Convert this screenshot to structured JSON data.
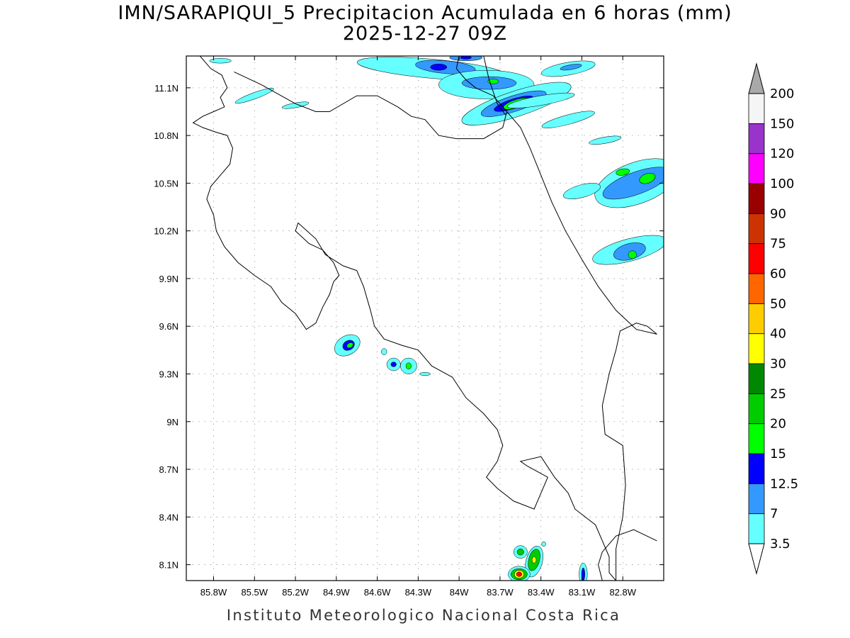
{
  "title": {
    "line1": "IMN/SARAPIQUI_5 Precipitacion Acumulada en 6 horas (mm)",
    "line2": "2025-12-27 09Z"
  },
  "credit": "Instituto Meteorologico Nacional Costa Rica",
  "chart_data": {
    "type": "heatmap",
    "x_ticks": [
      "85.8W",
      "85.5W",
      "85.2W",
      "84.9W",
      "84.6W",
      "84.3W",
      "84W",
      "83.7W",
      "83.4W",
      "83.1W",
      "82.8W"
    ],
    "y_ticks": [
      "11.1N",
      "10.8N",
      "10.5N",
      "10.2N",
      "9.9N",
      "9.6N",
      "9.3N",
      "9N",
      "8.7N",
      "8.4N",
      "8.1N"
    ],
    "lon_range": [
      -86.0,
      -82.5
    ],
    "lat_range": [
      8.0,
      11.3
    ],
    "grid": true,
    "colorbar": {
      "labels": [
        "3.5",
        "7",
        "12.5",
        "15",
        "20",
        "25",
        "30",
        "40",
        "50",
        "60",
        "75",
        "90",
        "100",
        "120",
        "150",
        "200"
      ],
      "colors": [
        "#66ffff",
        "#3399ff",
        "#0000ff",
        "#00ff00",
        "#00cc00",
        "#008800",
        "#ffff00",
        "#ffcc00",
        "#ff6600",
        "#ff0000",
        "#cc3300",
        "#990000",
        "#ff00ff",
        "#9933cc",
        "#f5f5f5"
      ],
      "top_arrow_color": "#a9a9a9",
      "bottom_arrow_color": "#ffffff"
    },
    "cells": [
      {
        "lon": -84.2,
        "lat": 11.22,
        "level": 1,
        "rx": 0.55,
        "ry": 0.06,
        "rot": 5
      },
      {
        "lon": -84.1,
        "lat": 11.23,
        "level": 2,
        "rx": 0.22,
        "ry": 0.04,
        "rot": 5
      },
      {
        "lon": -84.15,
        "lat": 11.23,
        "level": 3,
        "rx": 0.06,
        "ry": 0.02,
        "rot": 0
      },
      {
        "lon": -83.95,
        "lat": 11.29,
        "level": 2,
        "rx": 0.12,
        "ry": 0.02,
        "rot": 0
      },
      {
        "lon": -83.95,
        "lat": 11.29,
        "level": 3,
        "rx": 0.04,
        "ry": 0.01,
        "rot": 0
      },
      {
        "lon": -83.8,
        "lat": 11.12,
        "level": 1,
        "rx": 0.35,
        "ry": 0.09,
        "rot": 0
      },
      {
        "lon": -83.78,
        "lat": 11.13,
        "level": 2,
        "rx": 0.2,
        "ry": 0.04,
        "rot": 0
      },
      {
        "lon": -83.75,
        "lat": 11.14,
        "level": 4,
        "rx": 0.04,
        "ry": 0.015,
        "rot": 0
      },
      {
        "lon": -83.58,
        "lat": 11.0,
        "level": 1,
        "rx": 0.42,
        "ry": 0.08,
        "rot": -18
      },
      {
        "lon": -83.6,
        "lat": 11.0,
        "level": 2,
        "rx": 0.25,
        "ry": 0.05,
        "rot": -18
      },
      {
        "lon": -83.6,
        "lat": 11.0,
        "level": 3,
        "rx": 0.15,
        "ry": 0.03,
        "rot": -18
      },
      {
        "lon": -83.58,
        "lat": 11.0,
        "level": 4,
        "rx": 0.1,
        "ry": 0.025,
        "rot": -18
      },
      {
        "lon": -83.2,
        "lat": 11.22,
        "level": 1,
        "rx": 0.2,
        "ry": 0.04,
        "rot": -10
      },
      {
        "lon": -83.18,
        "lat": 11.23,
        "level": 2,
        "rx": 0.08,
        "ry": 0.015,
        "rot": -10
      },
      {
        "lon": -83.4,
        "lat": 11.02,
        "level": 1,
        "rx": 0.25,
        "ry": 0.03,
        "rot": -10
      },
      {
        "lon": -83.2,
        "lat": 10.9,
        "level": 1,
        "rx": 0.2,
        "ry": 0.03,
        "rot": -15
      },
      {
        "lon": -82.93,
        "lat": 10.77,
        "level": 1,
        "rx": 0.12,
        "ry": 0.02,
        "rot": -10
      },
      {
        "lon": -85.5,
        "lat": 11.05,
        "level": 1,
        "rx": 0.15,
        "ry": 0.02,
        "rot": -20
      },
      {
        "lon": -85.2,
        "lat": 10.99,
        "level": 1,
        "rx": 0.1,
        "ry": 0.015,
        "rot": -10
      },
      {
        "lon": -85.75,
        "lat": 11.27,
        "level": 1,
        "rx": 0.08,
        "ry": 0.015,
        "rot": 0
      },
      {
        "lon": -82.7,
        "lat": 10.5,
        "level": 1,
        "rx": 0.32,
        "ry": 0.13,
        "rot": -20
      },
      {
        "lon": -82.7,
        "lat": 10.5,
        "level": 2,
        "rx": 0.26,
        "ry": 0.07,
        "rot": -20
      },
      {
        "lon": -82.62,
        "lat": 10.53,
        "level": 4,
        "rx": 0.06,
        "ry": 0.03,
        "rot": -20
      },
      {
        "lon": -82.8,
        "lat": 10.57,
        "level": 4,
        "rx": 0.05,
        "ry": 0.02,
        "rot": -10
      },
      {
        "lon": -83.1,
        "lat": 10.45,
        "level": 1,
        "rx": 0.14,
        "ry": 0.04,
        "rot": -15
      },
      {
        "lon": -82.75,
        "lat": 10.08,
        "level": 1,
        "rx": 0.28,
        "ry": 0.07,
        "rot": -15
      },
      {
        "lon": -82.75,
        "lat": 10.07,
        "level": 2,
        "rx": 0.12,
        "ry": 0.05,
        "rot": -15
      },
      {
        "lon": -82.73,
        "lat": 10.05,
        "level": 4,
        "rx": 0.03,
        "ry": 0.025,
        "rot": 0
      },
      {
        "lon": -84.82,
        "lat": 9.48,
        "level": 1,
        "rx": 0.1,
        "ry": 0.06,
        "rot": -30
      },
      {
        "lon": -84.81,
        "lat": 9.48,
        "level": 3,
        "rx": 0.045,
        "ry": 0.03,
        "rot": -30
      },
      {
        "lon": -84.8,
        "lat": 9.48,
        "level": 4,
        "rx": 0.025,
        "ry": 0.015,
        "rot": -30
      },
      {
        "lon": -84.48,
        "lat": 9.36,
        "level": 1,
        "rx": 0.05,
        "ry": 0.04,
        "rot": 0
      },
      {
        "lon": -84.48,
        "lat": 9.36,
        "level": 3,
        "rx": 0.02,
        "ry": 0.015,
        "rot": 0
      },
      {
        "lon": -84.37,
        "lat": 9.35,
        "level": 1,
        "rx": 0.06,
        "ry": 0.05,
        "rot": 0
      },
      {
        "lon": -84.37,
        "lat": 9.35,
        "level": 4,
        "rx": 0.02,
        "ry": 0.02,
        "rot": 0
      },
      {
        "lon": -84.55,
        "lat": 9.44,
        "level": 1,
        "rx": 0.02,
        "ry": 0.02,
        "rot": 0
      },
      {
        "lon": -84.25,
        "lat": 9.3,
        "level": 1,
        "rx": 0.04,
        "ry": 0.01,
        "rot": 0
      },
      {
        "lon": -83.55,
        "lat": 8.18,
        "level": 1,
        "rx": 0.05,
        "ry": 0.04,
        "rot": 0
      },
      {
        "lon": -83.55,
        "lat": 8.18,
        "level": 5,
        "rx": 0.025,
        "ry": 0.02,
        "rot": 0
      },
      {
        "lon": -83.45,
        "lat": 8.12,
        "level": 1,
        "rx": 0.06,
        "ry": 0.1,
        "rot": 15
      },
      {
        "lon": -83.45,
        "lat": 8.13,
        "level": 5,
        "rx": 0.04,
        "ry": 0.07,
        "rot": 15
      },
      {
        "lon": -83.45,
        "lat": 8.13,
        "level": 7,
        "rx": 0.015,
        "ry": 0.02,
        "rot": 0
      },
      {
        "lon": -83.56,
        "lat": 8.04,
        "level": 1,
        "rx": 0.08,
        "ry": 0.05,
        "rot": 0
      },
      {
        "lon": -83.56,
        "lat": 8.04,
        "level": 5,
        "rx": 0.06,
        "ry": 0.035,
        "rot": 0
      },
      {
        "lon": -83.56,
        "lat": 8.04,
        "level": 7,
        "rx": 0.035,
        "ry": 0.025,
        "rot": 0
      },
      {
        "lon": -83.56,
        "lat": 8.04,
        "level": 10,
        "rx": 0.02,
        "ry": 0.015,
        "rot": 0
      },
      {
        "lon": -83.09,
        "lat": 8.04,
        "level": 1,
        "rx": 0.03,
        "ry": 0.07,
        "rot": 0
      },
      {
        "lon": -83.09,
        "lat": 8.04,
        "level": 3,
        "rx": 0.012,
        "ry": 0.04,
        "rot": 0
      },
      {
        "lon": -83.38,
        "lat": 8.23,
        "level": 1,
        "rx": 0.015,
        "ry": 0.015,
        "rot": 0
      }
    ],
    "coastlines": [
      [
        [
          -85.9,
          11.3
        ],
        [
          -85.82,
          11.22
        ],
        [
          -85.74,
          11.18
        ],
        [
          -85.7,
          11.1
        ],
        [
          -85.75,
          11.04
        ],
        [
          -85.72,
          10.98
        ],
        [
          -85.8,
          10.95
        ],
        [
          -85.88,
          10.92
        ],
        [
          -85.95,
          10.88
        ],
        [
          -85.88,
          10.85
        ],
        [
          -85.78,
          10.82
        ],
        [
          -85.7,
          10.8
        ],
        [
          -85.66,
          10.72
        ],
        [
          -85.68,
          10.62
        ],
        [
          -85.75,
          10.55
        ],
        [
          -85.82,
          10.48
        ],
        [
          -85.85,
          10.4
        ],
        [
          -85.8,
          10.3
        ],
        [
          -85.78,
          10.2
        ],
        [
          -85.72,
          10.1
        ],
        [
          -85.62,
          10.0
        ],
        [
          -85.5,
          9.92
        ],
        [
          -85.38,
          9.85
        ],
        [
          -85.3,
          9.75
        ],
        [
          -85.2,
          9.68
        ],
        [
          -85.12,
          9.58
        ],
        [
          -85.05,
          9.62
        ],
        [
          -85.0,
          9.72
        ],
        [
          -84.95,
          9.8
        ],
        [
          -84.92,
          9.88
        ],
        [
          -84.88,
          9.92
        ],
        [
          -84.92,
          10.0
        ],
        [
          -85.0,
          10.08
        ],
        [
          -85.1,
          10.12
        ],
        [
          -85.2,
          10.2
        ],
        [
          -85.18,
          10.25
        ],
        [
          -85.05,
          10.15
        ],
        [
          -84.98,
          10.05
        ],
        [
          -84.85,
          9.98
        ],
        [
          -84.75,
          9.95
        ],
        [
          -84.7,
          9.85
        ],
        [
          -84.65,
          9.7
        ],
        [
          -84.62,
          9.6
        ],
        [
          -84.55,
          9.52
        ],
        [
          -84.42,
          9.48
        ],
        [
          -84.3,
          9.45
        ],
        [
          -84.2,
          9.35
        ],
        [
          -84.05,
          9.28
        ],
        [
          -83.95,
          9.15
        ],
        [
          -83.82,
          9.05
        ],
        [
          -83.72,
          8.95
        ],
        [
          -83.68,
          8.85
        ],
        [
          -83.72,
          8.75
        ],
        [
          -83.8,
          8.65
        ],
        [
          -83.72,
          8.58
        ],
        [
          -83.6,
          8.5
        ],
        [
          -83.45,
          8.45
        ],
        [
          -83.4,
          8.55
        ],
        [
          -83.35,
          8.65
        ],
        [
          -83.5,
          8.72
        ],
        [
          -83.55,
          8.75
        ],
        [
          -83.4,
          8.78
        ],
        [
          -83.3,
          8.65
        ],
        [
          -83.25,
          8.6
        ],
        [
          -83.2,
          8.55
        ],
        [
          -83.15,
          8.45
        ],
        [
          -83.0,
          8.35
        ],
        [
          -82.9,
          8.15
        ],
        [
          -82.9,
          8.05
        ],
        [
          -82.85,
          8.0
        ]
      ],
      [
        [
          -84.0,
          11.3
        ],
        [
          -84.02,
          11.22
        ],
        [
          -83.95,
          11.15
        ],
        [
          -83.88,
          11.1
        ],
        [
          -83.75,
          11.05
        ],
        [
          -83.68,
          10.98
        ],
        [
          -83.62,
          10.92
        ],
        [
          -83.55,
          10.85
        ],
        [
          -83.48,
          10.72
        ],
        [
          -83.4,
          10.55
        ],
        [
          -83.32,
          10.38
        ],
        [
          -83.22,
          10.2
        ],
        [
          -83.1,
          10.02
        ],
        [
          -82.98,
          9.85
        ],
        [
          -82.85,
          9.7
        ],
        [
          -82.7,
          9.58
        ],
        [
          -82.55,
          9.55
        ]
      ],
      [
        [
          -82.55,
          8.25
        ],
        [
          -82.72,
          8.32
        ],
        [
          -82.85,
          8.28
        ],
        [
          -82.95,
          8.18
        ],
        [
          -82.98,
          8.1
        ],
        [
          -82.95,
          8.0
        ]
      ]
    ],
    "borders": [
      [
        [
          -85.65,
          11.2
        ],
        [
          -85.45,
          11.12
        ],
        [
          -85.2,
          11.0
        ],
        [
          -85.05,
          10.95
        ],
        [
          -84.95,
          10.95
        ],
        [
          -84.75,
          11.05
        ],
        [
          -84.6,
          11.05
        ],
        [
          -84.45,
          10.98
        ],
        [
          -84.35,
          10.92
        ],
        [
          -84.25,
          10.9
        ],
        [
          -84.15,
          10.8
        ],
        [
          -84.02,
          10.78
        ],
        [
          -83.82,
          10.78
        ],
        [
          -83.68,
          10.85
        ],
        [
          -83.65,
          10.95
        ]
      ],
      [
        [
          -83.82,
          11.3
        ],
        [
          -83.78,
          11.15
        ],
        [
          -83.72,
          11.0
        ],
        [
          -83.66,
          10.93
        ]
      ],
      [
        [
          -82.55,
          9.55
        ],
        [
          -82.62,
          9.6
        ],
        [
          -82.7,
          9.62
        ],
        [
          -82.82,
          9.57
        ],
        [
          -82.85,
          9.45
        ],
        [
          -82.9,
          9.3
        ],
        [
          -82.95,
          9.1
        ],
        [
          -82.93,
          8.92
        ],
        [
          -82.8,
          8.85
        ],
        [
          -82.78,
          8.6
        ],
        [
          -82.8,
          8.4
        ],
        [
          -82.85,
          8.2
        ],
        [
          -82.85,
          8.0
        ]
      ]
    ]
  }
}
